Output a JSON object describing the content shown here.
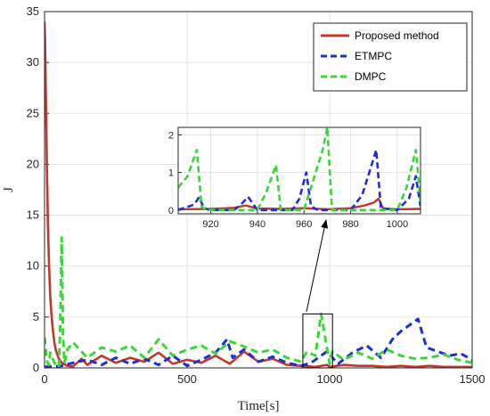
{
  "chart_data": [
    {
      "type": "line",
      "title": "",
      "xlabel": "Time[s]",
      "ylabel": "J",
      "xlim": [
        0,
        1500
      ],
      "ylim": [
        0,
        35
      ],
      "xticks": [
        "0",
        "500",
        "1000",
        "1500"
      ],
      "yticks": [
        "0",
        "5",
        "10",
        "15",
        "20",
        "25",
        "30",
        "35"
      ],
      "grid": true,
      "legend_position": "top-right",
      "series": [
        {
          "name": "Proposed method",
          "color": "#c0392b",
          "style": "solid",
          "x": [
            0,
            2,
            5,
            8,
            12,
            16,
            20,
            25,
            30,
            35,
            40,
            50,
            60,
            80,
            100,
            130,
            150,
            200,
            250,
            300,
            350,
            400,
            450,
            500,
            550,
            600,
            650,
            700,
            750,
            800,
            850,
            900,
            950,
            990,
            1000,
            1050,
            1100,
            1150,
            1200,
            1250,
            1300,
            1350,
            1400,
            1450,
            1500
          ],
          "y": [
            34,
            32,
            26,
            20,
            14,
            10,
            7,
            5,
            3.5,
            2.4,
            1.7,
            0.9,
            0.5,
            0.2,
            0.15,
            0.9,
            0.3,
            1.2,
            0.5,
            1.0,
            0.6,
            1.5,
            0.4,
            0.8,
            0.5,
            1.2,
            0.4,
            1.6,
            0.6,
            0.9,
            0.3,
            0.2,
            0.1,
            0.3,
            0.1,
            0.3,
            0.2,
            0.2,
            0.1,
            0.2,
            0.1,
            0.2,
            0.1,
            0.1,
            0.1
          ]
        },
        {
          "name": "ETMPC",
          "color": "#1f2fd1",
          "style": "dashed",
          "x": [
            0,
            60,
            100,
            150,
            200,
            250,
            300,
            350,
            400,
            450,
            500,
            550,
            600,
            640,
            660,
            700,
            750,
            800,
            850,
            900,
            935,
            960,
            990,
            1030,
            1080,
            1130,
            1180,
            1220,
            1250,
            1280,
            1310,
            1340,
            1380,
            1420,
            1460,
            1500
          ],
          "y": [
            0.1,
            0.2,
            0.5,
            0.8,
            0.3,
            1.0,
            0.4,
            0.9,
            0.3,
            1.2,
            0.2,
            0.8,
            1.5,
            2.8,
            1.0,
            1.8,
            0.6,
            1.1,
            0.5,
            0.2,
            0.5,
            1.0,
            1.6,
            0.4,
            1.5,
            2.2,
            1.0,
            2.8,
            3.6,
            4.2,
            4.8,
            2.0,
            1.6,
            1.2,
            1.4,
            0.8
          ]
        },
        {
          "name": "DMPC",
          "color": "#39d739",
          "style": "dashed",
          "x": [
            0,
            5,
            10,
            15,
            20,
            30,
            40,
            50,
            55,
            60,
            65,
            70,
            80,
            100,
            150,
            200,
            250,
            300,
            350,
            400,
            450,
            500,
            550,
            600,
            650,
            700,
            750,
            800,
            850,
            900,
            920,
            950,
            970,
            1000,
            1010,
            1050,
            1100,
            1150,
            1200,
            1250,
            1300,
            1350,
            1400,
            1450,
            1500
          ],
          "y": [
            3.0,
            1.5,
            0.5,
            0.3,
            1.5,
            0.8,
            0.2,
            0.1,
            4.0,
            12.8,
            3.0,
            0.5,
            1.8,
            2.5,
            1.0,
            2.0,
            1.6,
            2.2,
            1.0,
            2.8,
            1.2,
            1.8,
            2.2,
            1.4,
            2.6,
            2.1,
            1.5,
            1.8,
            1.0,
            0.6,
            1.6,
            1.2,
            5.3,
            0.4,
            1.6,
            0.8,
            1.5,
            0.9,
            1.8,
            1.2,
            0.9,
            1.0,
            1.3,
            0.8,
            0.5
          ]
        }
      ]
    },
    {
      "type": "line",
      "title": "",
      "xlabel": "",
      "ylabel": "",
      "xlim": [
        906,
        1010
      ],
      "ylim": [
        -0.1,
        2.2
      ],
      "xticks": [
        "920",
        "940",
        "960",
        "980",
        "1000"
      ],
      "yticks": [
        "0",
        "1",
        "2"
      ],
      "grid": true,
      "series": [
        {
          "color": "#c0392b",
          "style": "solid",
          "x": [
            906,
            920,
            930,
            935,
            940,
            950,
            960,
            970,
            980,
            986,
            990,
            992,
            994,
            1000,
            1010
          ],
          "y": [
            0.02,
            0.03,
            0.06,
            0.12,
            0.04,
            0.03,
            0.05,
            0.02,
            0.05,
            0.12,
            0.2,
            0.3,
            0.04,
            0.02,
            0.03
          ]
        },
        {
          "color": "#1f2fd1",
          "style": "dashed",
          "x": [
            906,
            913,
            915,
            917,
            920,
            930,
            933,
            936,
            940,
            955,
            958,
            961,
            963,
            966,
            980,
            985,
            988,
            991,
            993,
            1000,
            1005,
            1008,
            1010
          ],
          "y": [
            0.0,
            0.15,
            0.35,
            0.05,
            0.0,
            0.0,
            0.15,
            0.35,
            0.0,
            0.0,
            0.3,
            1.0,
            0.1,
            0.0,
            0.0,
            0.4,
            1.0,
            1.6,
            0.05,
            0.0,
            0.3,
            0.9,
            0.1
          ]
        },
        {
          "color": "#39d739",
          "style": "dashed",
          "x": [
            906,
            910,
            914,
            916,
            918,
            940,
            944,
            948,
            950,
            960,
            964,
            968,
            970,
            972,
            1000,
            1004,
            1008,
            1010
          ],
          "y": [
            0.6,
            0.9,
            1.6,
            0.1,
            0.0,
            0.0,
            0.5,
            1.2,
            0.0,
            0.0,
            0.8,
            1.6,
            2.2,
            0.0,
            0.0,
            0.6,
            1.6,
            0.2
          ]
        }
      ]
    }
  ]
}
